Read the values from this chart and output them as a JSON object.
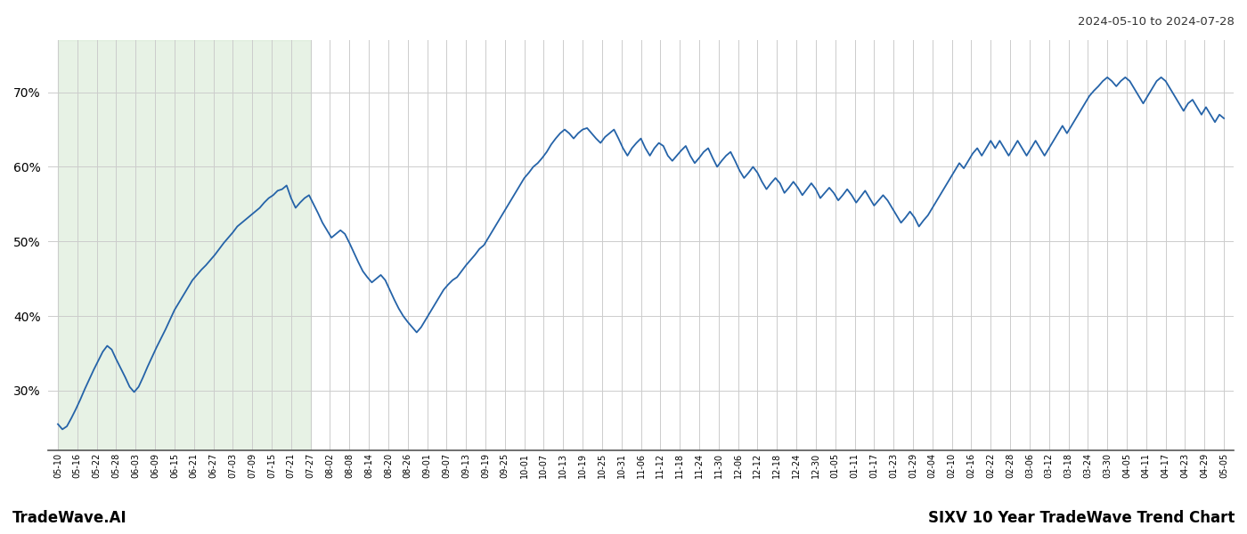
{
  "title_right": "2024-05-10 to 2024-07-28",
  "footer_left": "TradeWave.AI",
  "footer_right": "SIXV 10 Year TradeWave Trend Chart",
  "line_color": "#2563a8",
  "line_width": 1.3,
  "background_color": "#ffffff",
  "grid_color": "#cccccc",
  "shade_color": "#d4e8d0",
  "shade_alpha": 0.55,
  "ylim": [
    22,
    77
  ],
  "yticks": [
    30,
    40,
    50,
    60,
    70
  ],
  "x_labels": [
    "05-10",
    "05-16",
    "05-22",
    "05-28",
    "06-03",
    "06-09",
    "06-15",
    "06-21",
    "06-27",
    "07-03",
    "07-09",
    "07-15",
    "07-21",
    "07-27",
    "08-02",
    "08-08",
    "08-14",
    "08-20",
    "08-26",
    "09-01",
    "09-07",
    "09-13",
    "09-19",
    "09-25",
    "10-01",
    "10-07",
    "10-13",
    "10-19",
    "10-25",
    "10-31",
    "11-06",
    "11-12",
    "11-18",
    "11-24",
    "11-30",
    "12-06",
    "12-12",
    "12-18",
    "12-24",
    "12-30",
    "01-05",
    "01-11",
    "01-17",
    "01-23",
    "01-29",
    "02-04",
    "02-10",
    "02-16",
    "02-22",
    "02-28",
    "03-06",
    "03-12",
    "03-18",
    "03-24",
    "03-30",
    "04-05",
    "04-11",
    "04-17",
    "04-23",
    "04-29",
    "05-05"
  ],
  "shade_start_label": "05-10",
  "shade_end_label": "07-27",
  "values": [
    25.5,
    24.8,
    25.2,
    26.3,
    27.5,
    28.8,
    30.2,
    31.5,
    32.8,
    34.0,
    35.2,
    36.0,
    35.5,
    34.2,
    33.0,
    31.8,
    30.5,
    29.8,
    30.5,
    31.8,
    33.2,
    34.5,
    35.8,
    37.0,
    38.2,
    39.5,
    40.8,
    41.8,
    42.8,
    43.8,
    44.8,
    45.5,
    46.2,
    46.8,
    47.5,
    48.2,
    49.0,
    49.8,
    50.5,
    51.2,
    52.0,
    52.5,
    53.0,
    53.5,
    54.0,
    54.5,
    55.2,
    55.8,
    56.2,
    56.8,
    57.0,
    57.5,
    55.8,
    54.5,
    55.2,
    55.8,
    56.2,
    55.0,
    53.8,
    52.5,
    51.5,
    50.5,
    51.0,
    51.5,
    51.0,
    49.8,
    48.5,
    47.2,
    46.0,
    45.2,
    44.5,
    45.0,
    45.5,
    44.8,
    43.5,
    42.2,
    41.0,
    40.0,
    39.2,
    38.5,
    37.8,
    38.5,
    39.5,
    40.5,
    41.5,
    42.5,
    43.5,
    44.2,
    44.8,
    45.2,
    46.0,
    46.8,
    47.5,
    48.2,
    49.0,
    49.5,
    50.5,
    51.5,
    52.5,
    53.5,
    54.5,
    55.5,
    56.5,
    57.5,
    58.5,
    59.2,
    60.0,
    60.5,
    61.2,
    62.0,
    63.0,
    63.8,
    64.5,
    65.0,
    64.5,
    63.8,
    64.5,
    65.0,
    65.2,
    64.5,
    63.8,
    63.2,
    64.0,
    64.5,
    65.0,
    63.8,
    62.5,
    61.5,
    62.5,
    63.2,
    63.8,
    62.5,
    61.5,
    62.5,
    63.2,
    62.8,
    61.5,
    60.8,
    61.5,
    62.2,
    62.8,
    61.5,
    60.5,
    61.2,
    62.0,
    62.5,
    61.2,
    60.0,
    60.8,
    61.5,
    62.0,
    60.8,
    59.5,
    58.5,
    59.2,
    60.0,
    59.2,
    58.0,
    57.0,
    57.8,
    58.5,
    57.8,
    56.5,
    57.2,
    58.0,
    57.2,
    56.2,
    57.0,
    57.8,
    57.0,
    55.8,
    56.5,
    57.2,
    56.5,
    55.5,
    56.2,
    57.0,
    56.2,
    55.2,
    56.0,
    56.8,
    55.8,
    54.8,
    55.5,
    56.2,
    55.5,
    54.5,
    53.5,
    52.5,
    53.2,
    54.0,
    53.2,
    52.0,
    52.8,
    53.5,
    54.5,
    55.5,
    56.5,
    57.5,
    58.5,
    59.5,
    60.5,
    59.8,
    60.8,
    61.8,
    62.5,
    61.5,
    62.5,
    63.5,
    62.5,
    63.5,
    62.5,
    61.5,
    62.5,
    63.5,
    62.5,
    61.5,
    62.5,
    63.5,
    62.5,
    61.5,
    62.5,
    63.5,
    64.5,
    65.5,
    64.5,
    65.5,
    66.5,
    67.5,
    68.5,
    69.5,
    70.2,
    70.8,
    71.5,
    72.0,
    71.5,
    70.8,
    71.5,
    72.0,
    71.5,
    70.5,
    69.5,
    68.5,
    69.5,
    70.5,
    71.5,
    72.0,
    71.5,
    70.5,
    69.5,
    68.5,
    67.5,
    68.5,
    69.0,
    68.0,
    67.0,
    68.0,
    67.0,
    66.0,
    67.0,
    66.5
  ]
}
